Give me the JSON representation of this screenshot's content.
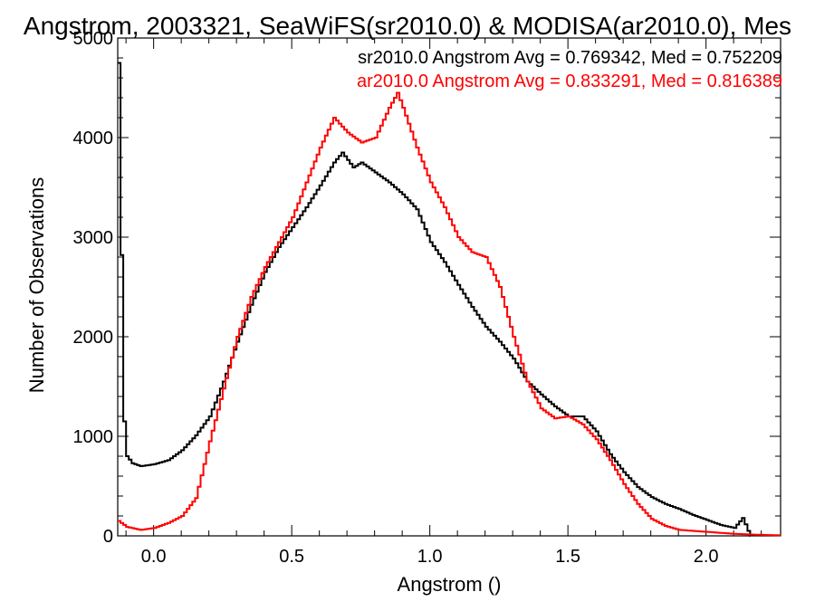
{
  "chart_data": {
    "type": "histogram",
    "title": "Angstrom, 2003321, SeaWiFS(sr2010.0) & MODISA(ar2010.0), Mes",
    "xlabel": "Angstrom ()",
    "ylabel": "Number of Observations",
    "xlim": [
      -0.13,
      2.27
    ],
    "ylim": [
      0,
      5000
    ],
    "x_ticks": [
      0.0,
      0.5,
      1.0,
      1.5,
      2.0
    ],
    "x_tick_labels": [
      "0.0",
      "0.5",
      "1.0",
      "1.5",
      "2.0"
    ],
    "y_ticks": [
      0,
      1000,
      2000,
      3000,
      4000,
      5000
    ],
    "y_tick_labels": [
      "0",
      "1000",
      "2000",
      "3000",
      "4000",
      "5000"
    ],
    "grid": false,
    "legend_position": "top-right",
    "colors": {
      "sr": "#000000",
      "ar": "#ff0000",
      "axis": "#000000"
    },
    "series": [
      {
        "name": "sr2010.0",
        "color": "#000000",
        "annotation": "sr2010.0 Angstrom Avg = 0.769342, Med = 0.752209",
        "points": [
          [
            -0.13,
            4750
          ],
          [
            -0.12,
            2820
          ],
          [
            -0.11,
            1150
          ],
          [
            -0.1,
            800
          ],
          [
            -0.08,
            730
          ],
          [
            -0.05,
            700
          ],
          [
            0.0,
            720
          ],
          [
            0.05,
            760
          ],
          [
            0.1,
            860
          ],
          [
            0.15,
            1010
          ],
          [
            0.2,
            1200
          ],
          [
            0.25,
            1550
          ],
          [
            0.3,
            1950
          ],
          [
            0.35,
            2320
          ],
          [
            0.4,
            2650
          ],
          [
            0.45,
            2900
          ],
          [
            0.5,
            3100
          ],
          [
            0.55,
            3300
          ],
          [
            0.6,
            3520
          ],
          [
            0.65,
            3750
          ],
          [
            0.68,
            3850
          ],
          [
            0.72,
            3700
          ],
          [
            0.75,
            3750
          ],
          [
            0.8,
            3650
          ],
          [
            0.85,
            3550
          ],
          [
            0.9,
            3430
          ],
          [
            0.95,
            3280
          ],
          [
            1.0,
            2950
          ],
          [
            1.05,
            2750
          ],
          [
            1.1,
            2520
          ],
          [
            1.15,
            2300
          ],
          [
            1.2,
            2100
          ],
          [
            1.25,
            1950
          ],
          [
            1.3,
            1780
          ],
          [
            1.35,
            1550
          ],
          [
            1.4,
            1420
          ],
          [
            1.45,
            1300
          ],
          [
            1.5,
            1200
          ],
          [
            1.55,
            1200
          ],
          [
            1.6,
            1050
          ],
          [
            1.65,
            820
          ],
          [
            1.7,
            640
          ],
          [
            1.75,
            490
          ],
          [
            1.8,
            390
          ],
          [
            1.85,
            320
          ],
          [
            1.9,
            270
          ],
          [
            1.95,
            210
          ],
          [
            2.0,
            160
          ],
          [
            2.05,
            110
          ],
          [
            2.1,
            80
          ],
          [
            2.13,
            180
          ],
          [
            2.15,
            50
          ],
          [
            2.16,
            0
          ]
        ]
      },
      {
        "name": "ar2010.0",
        "color": "#ff0000",
        "annotation": "ar2010.0 Angstrom Avg = 0.833291, Med = 0.816389",
        "points": [
          [
            -0.13,
            150
          ],
          [
            -0.1,
            90
          ],
          [
            -0.05,
            60
          ],
          [
            0.0,
            80
          ],
          [
            0.05,
            130
          ],
          [
            0.1,
            200
          ],
          [
            0.15,
            380
          ],
          [
            0.2,
            950
          ],
          [
            0.25,
            1480
          ],
          [
            0.3,
            2000
          ],
          [
            0.35,
            2400
          ],
          [
            0.4,
            2700
          ],
          [
            0.45,
            2950
          ],
          [
            0.5,
            3200
          ],
          [
            0.55,
            3550
          ],
          [
            0.6,
            3900
          ],
          [
            0.65,
            4200
          ],
          [
            0.7,
            4050
          ],
          [
            0.75,
            3950
          ],
          [
            0.8,
            4000
          ],
          [
            0.85,
            4300
          ],
          [
            0.88,
            4450
          ],
          [
            0.9,
            4300
          ],
          [
            0.95,
            3900
          ],
          [
            1.0,
            3550
          ],
          [
            1.05,
            3300
          ],
          [
            1.1,
            3000
          ],
          [
            1.15,
            2850
          ],
          [
            1.2,
            2800
          ],
          [
            1.25,
            2500
          ],
          [
            1.3,
            2000
          ],
          [
            1.35,
            1550
          ],
          [
            1.4,
            1280
          ],
          [
            1.45,
            1180
          ],
          [
            1.5,
            1200
          ],
          [
            1.55,
            1120
          ],
          [
            1.6,
            970
          ],
          [
            1.65,
            760
          ],
          [
            1.7,
            520
          ],
          [
            1.75,
            320
          ],
          [
            1.8,
            170
          ],
          [
            1.85,
            100
          ],
          [
            1.9,
            60
          ],
          [
            2.0,
            40
          ],
          [
            2.1,
            20
          ],
          [
            2.2,
            10
          ],
          [
            2.27,
            5
          ]
        ]
      }
    ]
  }
}
